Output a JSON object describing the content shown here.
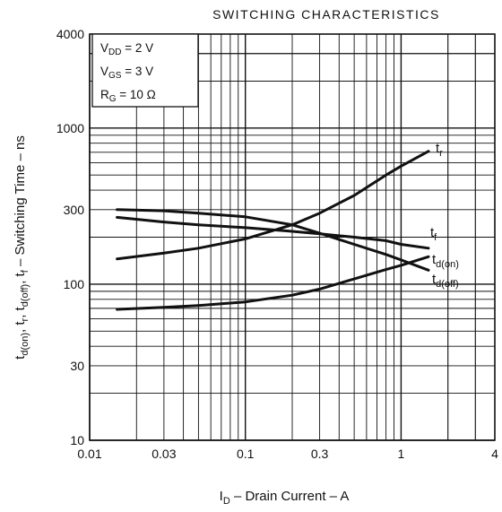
{
  "chart_data": {
    "type": "line",
    "title": "SWITCHING CHARACTERISTICS",
    "xlabel": "I_D - Drain Current - A",
    "ylabel": "t_d(on), t_r, t_d(off), t_f - Switching Time - ns",
    "xscale": "log",
    "yscale": "log",
    "xlim": [
      0.01,
      4
    ],
    "ylim": [
      10,
      4000
    ],
    "grid": true,
    "x_ticks": [
      {
        "value": 0.01,
        "label": "0.01"
      },
      {
        "value": 0.03,
        "label": "0.03"
      },
      {
        "value": 0.1,
        "label": "0.1"
      },
      {
        "value": 0.3,
        "label": "0.3"
      },
      {
        "value": 1,
        "label": "1"
      },
      {
        "value": 4,
        "label": "4"
      }
    ],
    "y_ticks": [
      {
        "value": 10,
        "label": "10"
      },
      {
        "value": 30,
        "label": "30"
      },
      {
        "value": 100,
        "label": "100"
      },
      {
        "value": 300,
        "label": "300"
      },
      {
        "value": 1000,
        "label": "1000"
      },
      {
        "value": 4000,
        "label": "4000"
      }
    ],
    "conditions": [
      "V_DD = 2 V",
      "V_GS = 3 V",
      "R_G = 10 Ω"
    ],
    "series": [
      {
        "name": "t_r",
        "x": [
          0.015,
          0.03,
          0.05,
          0.1,
          0.2,
          0.3,
          0.5,
          0.8,
          1.0,
          1.5
        ],
        "y": [
          145,
          158,
          170,
          195,
          240,
          285,
          370,
          500,
          570,
          710
        ]
      },
      {
        "name": "t_f",
        "x": [
          0.015,
          0.03,
          0.05,
          0.1,
          0.2,
          0.3,
          0.5,
          0.8,
          1.0,
          1.5
        ],
        "y": [
          268,
          250,
          240,
          230,
          218,
          210,
          200,
          190,
          180,
          170
        ]
      },
      {
        "name": "t_d(on)",
        "x": [
          0.015,
          0.03,
          0.05,
          0.1,
          0.2,
          0.3,
          0.5,
          0.8,
          1.0,
          1.5
        ],
        "y": [
          69,
          71,
          73,
          77,
          85,
          93,
          108,
          124,
          132,
          150
        ]
      },
      {
        "name": "t_d(off)",
        "x": [
          0.015,
          0.03,
          0.05,
          0.1,
          0.2,
          0.3,
          0.5,
          0.8,
          1.0,
          1.5
        ],
        "y": [
          300,
          295,
          285,
          270,
          240,
          212,
          180,
          155,
          143,
          123
        ]
      }
    ]
  }
}
